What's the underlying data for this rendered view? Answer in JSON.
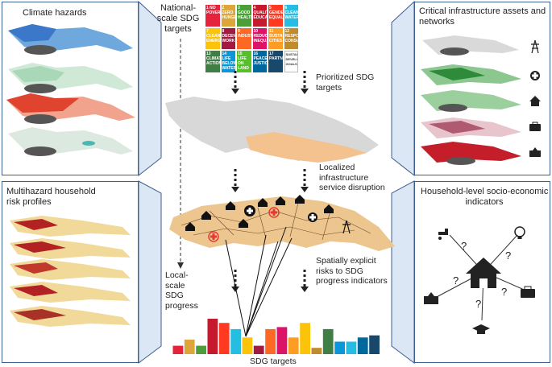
{
  "panels": {
    "climate_hazards": "Climate hazards",
    "multihazard_profiles": "Multihazard household\nrisk profiles",
    "critical_infrastructure": "Critical infrastructure assets and\nnetworks",
    "household_indicators": "Household-level socio-economic\nindicators"
  },
  "center": {
    "national_targets": "National-\nscale SDG\ntargets",
    "prioritized_targets": "Prioritized SDG\ntargets",
    "localized_disruption": "Localized\ninfrastructure\nservice disruption",
    "spatial_risks": "Spatially explicit\nrisks to SDG\nprogress indicators",
    "local_progress": "Local-\nscale\nSDG\nprogress",
    "sdg_targets": "SDG targets"
  },
  "sdg_goals": [
    {
      "num": "1",
      "label": "NO POVERTY",
      "color": "#e5243b"
    },
    {
      "num": "2",
      "label": "ZERO HUNGER",
      "color": "#dda63a"
    },
    {
      "num": "3",
      "label": "GOOD HEALTH",
      "color": "#4c9f38"
    },
    {
      "num": "4",
      "label": "QUALITY EDUCATION",
      "color": "#c5192d"
    },
    {
      "num": "5",
      "label": "GENDER EQUALITY",
      "color": "#ff3a21"
    },
    {
      "num": "6",
      "label": "CLEAN WATER",
      "color": "#26bde2"
    },
    {
      "num": "7",
      "label": "CLEAN ENERGY",
      "color": "#fcc30b"
    },
    {
      "num": "8",
      "label": "DECENT WORK",
      "color": "#a21942"
    },
    {
      "num": "9",
      "label": "INDUSTRY",
      "color": "#fd6925"
    },
    {
      "num": "10",
      "label": "REDUCED INEQUALITIES",
      "color": "#dd1367"
    },
    {
      "num": "11",
      "label": "SUSTAINABLE CITIES",
      "color": "#fd9d24"
    },
    {
      "num": "12",
      "label": "RESPONSIBLE CONSUMPTION",
      "color": "#bf8b2e"
    },
    {
      "num": "13",
      "label": "CLIMATE ACTION",
      "color": "#3f7e44"
    },
    {
      "num": "14",
      "label": "LIFE BELOW WATER",
      "color": "#0a97d9"
    },
    {
      "num": "15",
      "label": "LIFE ON LAND",
      "color": "#56c02b"
    },
    {
      "num": "16",
      "label": "PEACE JUSTICE",
      "color": "#00689d"
    },
    {
      "num": "17",
      "label": "PARTNERSHIPS",
      "color": "#19486a"
    },
    {
      "num": "",
      "label": "SUSTAINABLE DEVELOPMENT GOALS",
      "color": "#ffffff"
    }
  ],
  "sdg_bar_chart": {
    "values": [
      4,
      7,
      4,
      17,
      15,
      12,
      8,
      4,
      12,
      13,
      8,
      15,
      3,
      12,
      6,
      6,
      8,
      9
    ],
    "colors": [
      "#e5243b",
      "#dda63a",
      "#4c9f38",
      "#c5192d",
      "#ff3a21",
      "#26bde2",
      "#fcc30b",
      "#a21942",
      "#fd6925",
      "#dd1367",
      "#fd9d24",
      "#fcc30b",
      "#bf8b2e",
      "#3f7e44",
      "#0a97d9",
      "#26bde2",
      "#00689d",
      "#19486a"
    ]
  },
  "question_mark": "?"
}
